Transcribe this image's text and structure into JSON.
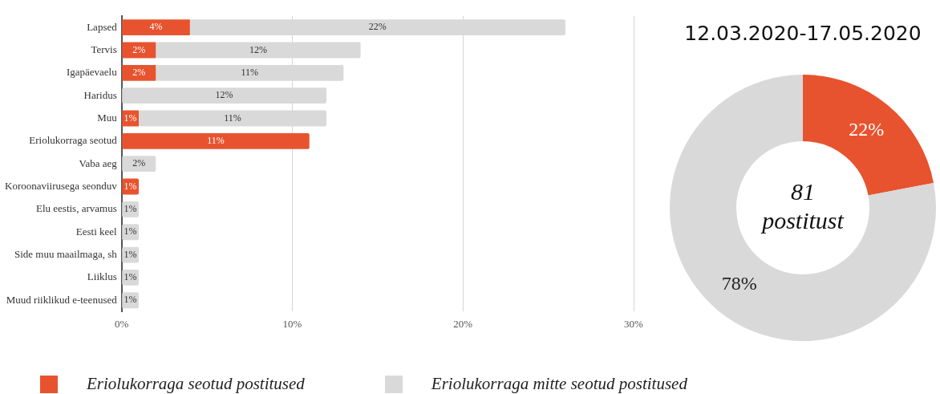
{
  "chart_data": [
    {
      "type": "bar",
      "orientation": "horizontal",
      "stacked": true,
      "categories": [
        "Lapsed",
        "Tervis",
        "Igapäevaelu",
        "Haridus",
        "Muu",
        "Eriolukorraga seotud",
        "Vaba aeg",
        "Koroonaviirusega seonduv",
        "Elu eestis, arvamus",
        "Eesti keel",
        "Side muu maailmaga, sh",
        "Liiklus",
        "Muud riiklikud e-teenused"
      ],
      "series": [
        {
          "name": "Eriolukorraga seotud postitused",
          "color": "#e8532f",
          "values": [
            4,
            2,
            2,
            null,
            1,
            11,
            null,
            1,
            null,
            null,
            null,
            null,
            null
          ],
          "value_labels": [
            "4%",
            "2%",
            "2%",
            null,
            "1%",
            "11%",
            null,
            "1%",
            null,
            null,
            null,
            null,
            null
          ]
        },
        {
          "name": "Eriolukorraga mitte seotud postitused",
          "color": "#d9d9d9",
          "values": [
            22,
            12,
            11,
            12,
            11,
            null,
            2,
            null,
            1,
            1,
            1,
            1,
            1
          ],
          "value_labels": [
            "22%",
            "12%",
            "11%",
            "12%",
            "11%",
            null,
            "2%",
            null,
            "1%",
            "1%",
            "1%",
            "1%",
            "1%"
          ]
        }
      ],
      "xlim": [
        0,
        30
      ],
      "xticks": [
        {
          "value": 0,
          "label": "0%"
        },
        {
          "value": 10,
          "label": "10%"
        },
        {
          "value": 20,
          "label": "20%"
        },
        {
          "value": 30,
          "label": "30%"
        }
      ],
      "grid": "x",
      "legend": "bottom"
    },
    {
      "type": "donut",
      "title": "12.03.2020-17.05.2020",
      "categories": [
        null,
        null
      ],
      "values": [
        22,
        78
      ],
      "colors": [
        "#e8532f",
        "#d9d9d9"
      ],
      "value_labels": [
        "22%",
        "78%"
      ],
      "annotations": [
        "81 postitust"
      ]
    }
  ]
}
